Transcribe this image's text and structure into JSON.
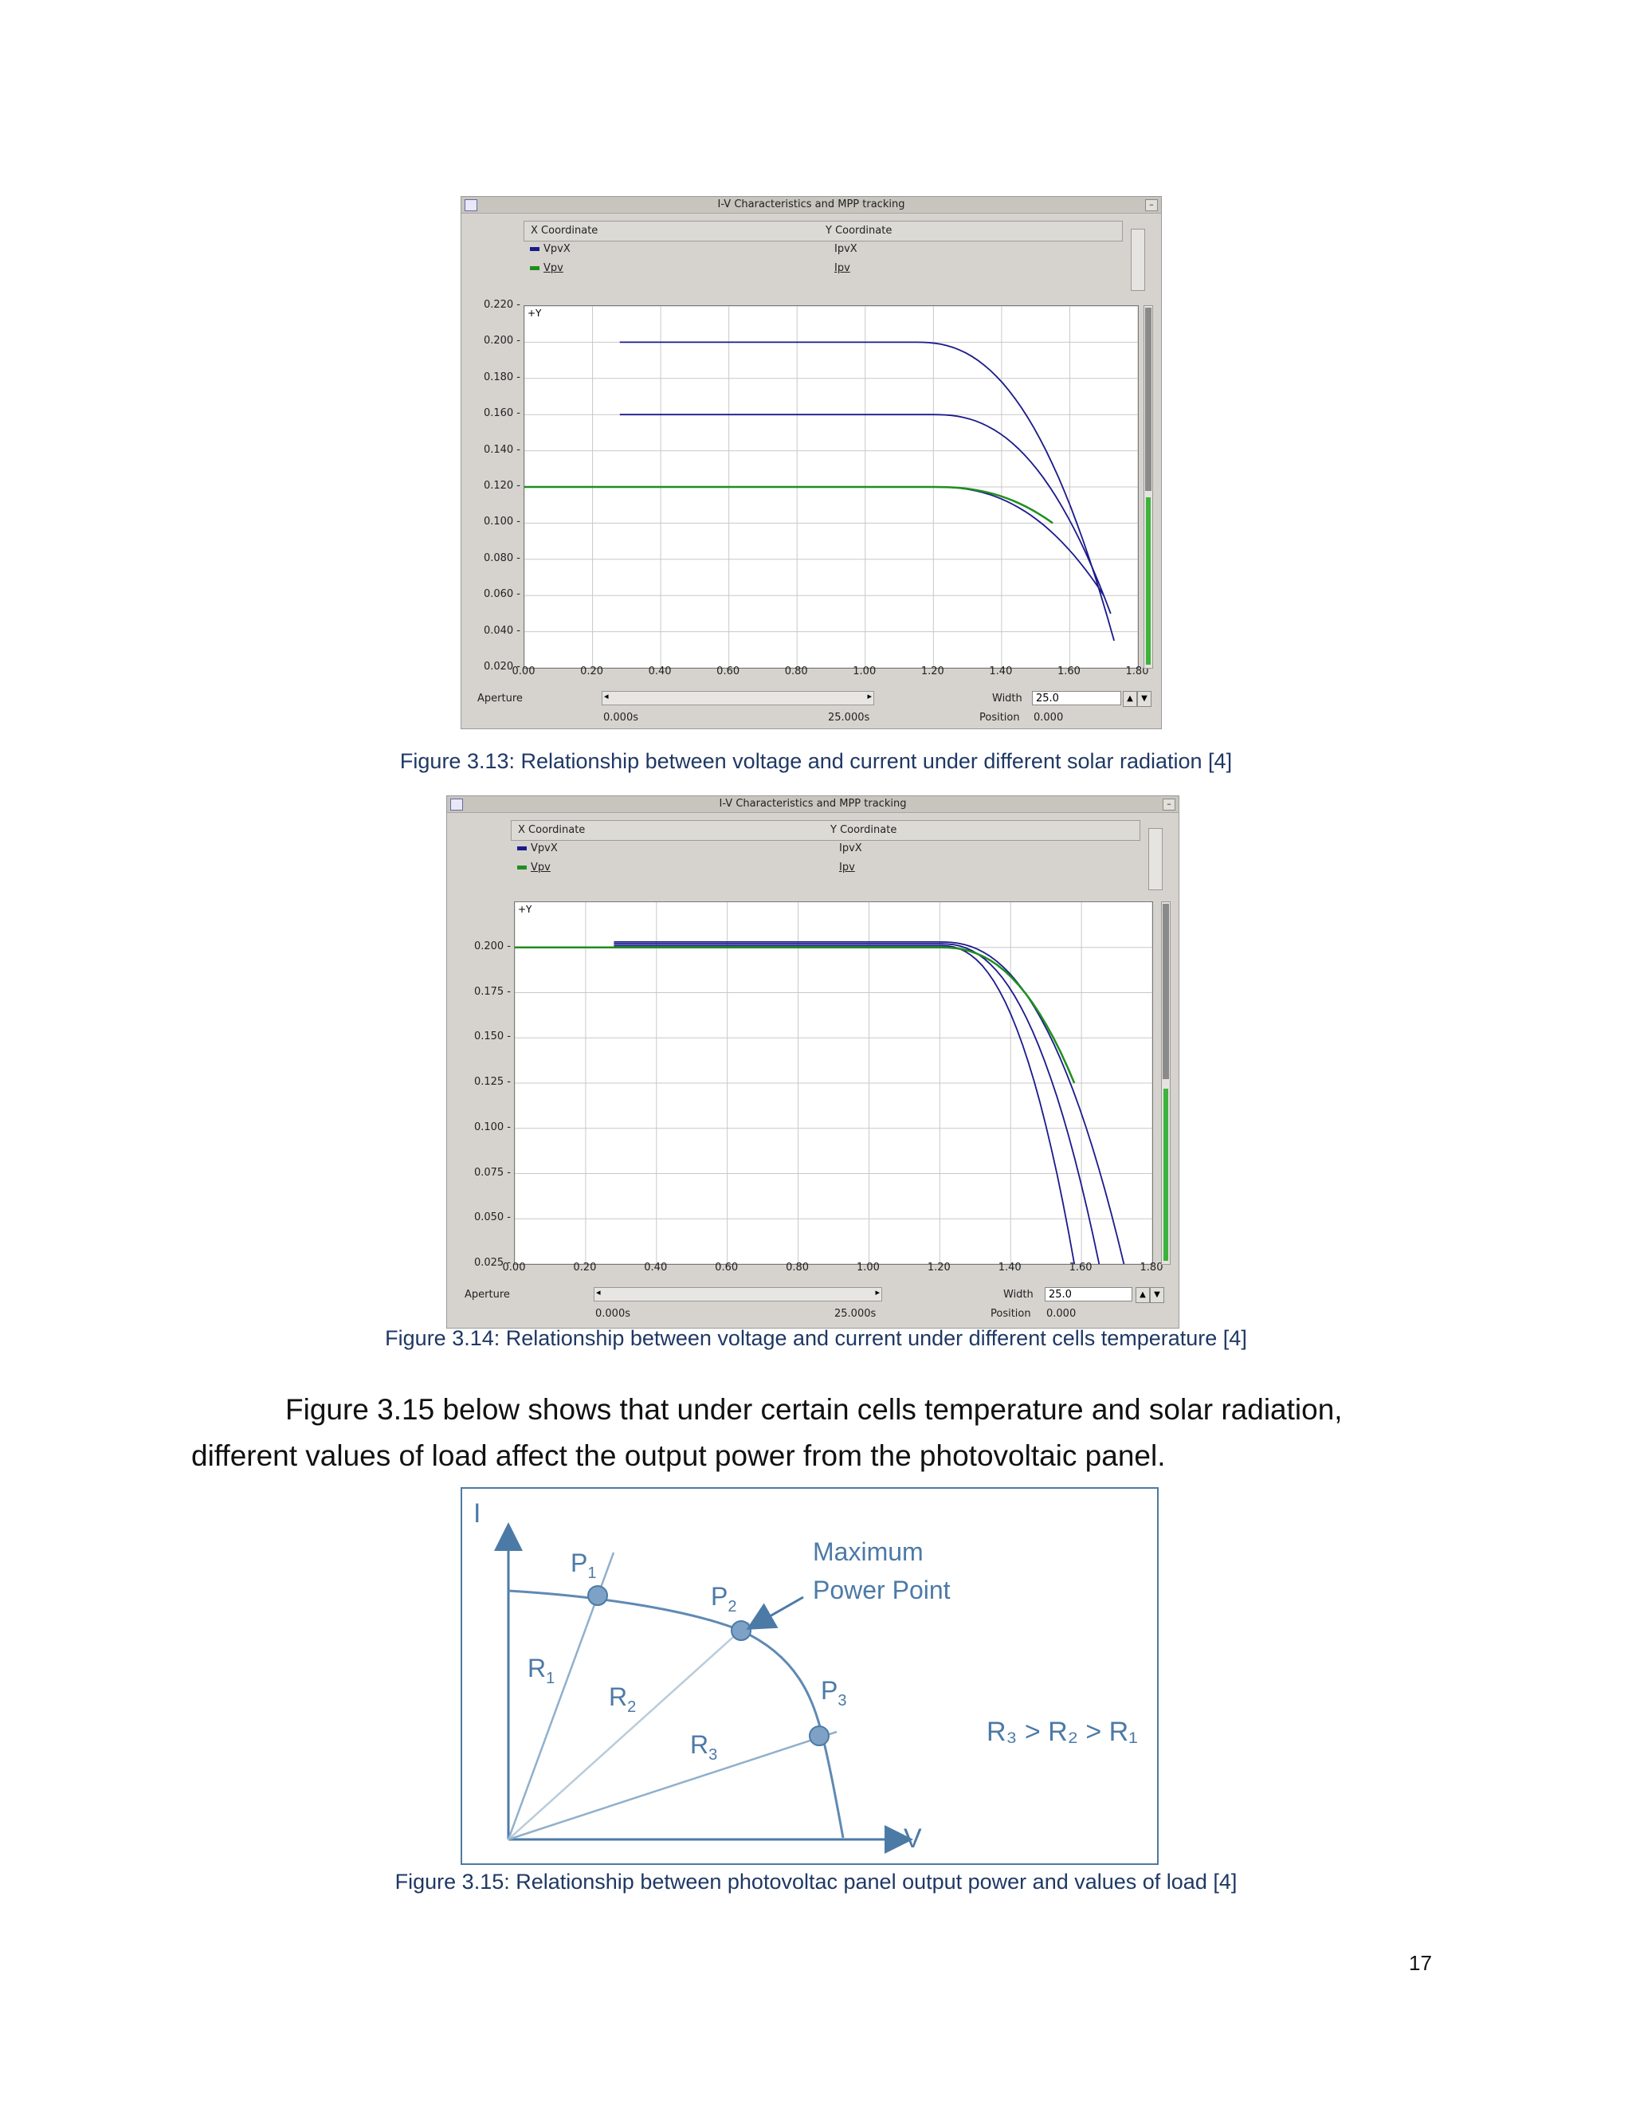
{
  "fig13": {
    "window_title": "I-V Characteristics and MPP tracking",
    "legend": {
      "x_header": "X Coordinate",
      "y_header": "Y Coordinate",
      "rows": [
        {
          "x": "VpvX",
          "y": "IpvX",
          "color": "#1a1a8c"
        },
        {
          "x": "Vpv",
          "y": "Ipv",
          "color": "#1e8f1e"
        }
      ]
    },
    "y_axis_label": "+Y",
    "aperture_label": "Aperture",
    "time_start": "0.000s",
    "time_end": "25.000s",
    "width_label": "Width",
    "width_value": "25.0",
    "position_label": "Position",
    "position_value": "0.000",
    "caption": "Figure 3.13:  Relationship between voltage and current under different solar radiation [4]"
  },
  "fig14": {
    "window_title": "I-V Characteristics and MPP tracking",
    "legend": {
      "x_header": "X Coordinate",
      "y_header": "Y Coordinate",
      "rows": [
        {
          "x": "VpvX",
          "y": "IpvX",
          "color": "#1a1a8c"
        },
        {
          "x": "Vpv",
          "y": "Ipv",
          "color": "#1e8f1e"
        }
      ]
    },
    "y_axis_label": "+Y",
    "aperture_label": "Aperture",
    "time_start": "0.000s",
    "time_end": "25.000s",
    "width_label": "Width",
    "width_value": "25.0",
    "position_label": "Position",
    "position_value": "0.000",
    "caption": "Figure 3.14: Relationship between voltage and current under different cells temperature [4]"
  },
  "paragraph_line1": "Figure 3.15 below shows that under certain cells temperature and solar radiation,",
  "paragraph_line2": "different values of load affect the output power from the photovoltaic panel.",
  "fig15": {
    "axis_i": "I",
    "axis_v": "V",
    "mpp_line1": "Maximum",
    "mpp_line2": "Power Point",
    "inequality": "R₃ > R₂ > R₁",
    "points": [
      {
        "label": "P",
        "sub": "1"
      },
      {
        "label": "P",
        "sub": "2"
      },
      {
        "label": "P",
        "sub": "3"
      }
    ],
    "resistors": [
      {
        "label": "R",
        "sub": "1"
      },
      {
        "label": "R",
        "sub": "2"
      },
      {
        "label": "R",
        "sub": "3"
      }
    ],
    "caption": "Figure 3.15: Relationship between photovoltac panel output power and values of load [4]"
  },
  "page_number": "17",
  "chart_data": [
    {
      "type": "line",
      "title": "I-V Characteristics and MPP tracking",
      "xlim": [
        0,
        1.8
      ],
      "ylim": [
        0.02,
        0.22
      ],
      "x_ticks": [
        "0.00",
        "0.20",
        "0.40",
        "0.60",
        "0.80",
        "1.00",
        "1.20",
        "1.40",
        "1.60",
        "1.80"
      ],
      "y_ticks": [
        "0.020",
        "0.040",
        "0.060",
        "0.080",
        "0.100",
        "0.120",
        "0.140",
        "0.160",
        "0.180",
        "0.200",
        "0.220"
      ],
      "series": [
        {
          "name": "VpvX",
          "color": "#1a1a8c",
          "curves": [
            {
              "isc": 0.2,
              "x_start": 0.28,
              "v_knee": 1.15,
              "v_end": 1.73,
              "i_end": 0.035
            },
            {
              "isc": 0.16,
              "x_start": 0.28,
              "v_knee": 1.2,
              "v_end": 1.72,
              "i_end": 0.05
            },
            {
              "isc": 0.12,
              "x_start": 0.28,
              "v_knee": 1.2,
              "v_end": 1.7,
              "i_end": 0.06
            }
          ]
        },
        {
          "name": "Vpv",
          "color": "#1e8f1e",
          "curves": [
            {
              "isc": 0.12,
              "x_start": 0.0,
              "v_knee": 1.2,
              "v_end": 1.55,
              "i_end": 0.1
            }
          ]
        }
      ]
    },
    {
      "type": "line",
      "title": "I-V Characteristics and MPP tracking",
      "xlim": [
        0,
        1.8
      ],
      "ylim": [
        0.025,
        0.225
      ],
      "x_ticks": [
        "0.00",
        "0.20",
        "0.40",
        "0.60",
        "0.80",
        "1.00",
        "1.20",
        "1.40",
        "1.60",
        "1.80"
      ],
      "y_ticks": [
        "0.025",
        "0.050",
        "0.075",
        "0.100",
        "0.125",
        "0.150",
        "0.175",
        "0.200"
      ],
      "series": [
        {
          "name": "VpvX",
          "color": "#1a1a8c",
          "curves": [
            {
              "isc": 0.203,
              "x_start": 0.28,
              "v_knee": 1.2,
              "v_end": 1.72,
              "i_end": 0.025
            },
            {
              "isc": 0.202,
              "x_start": 0.28,
              "v_knee": 1.2,
              "v_end": 1.65,
              "i_end": 0.025
            },
            {
              "isc": 0.201,
              "x_start": 0.28,
              "v_knee": 1.2,
              "v_end": 1.58,
              "i_end": 0.025
            }
          ]
        },
        {
          "name": "Vpv",
          "color": "#1e8f1e",
          "curves": [
            {
              "isc": 0.2,
              "x_start": 0.0,
              "v_knee": 1.2,
              "v_end": 1.58,
              "i_end": 0.125
            }
          ]
        }
      ]
    }
  ]
}
